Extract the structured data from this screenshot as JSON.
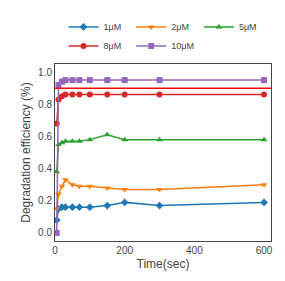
{
  "chart_data": {
    "type": "line",
    "xlabel": "Time(sec)",
    "ylabel": "Degradation efficiency (%)",
    "xlim": [
      0,
      620
    ],
    "ylim": [
      -0.05,
      1.05
    ],
    "xticks": [
      0,
      200,
      400,
      600
    ],
    "yticks": [
      {
        "value": 0,
        "label": "0.0"
      },
      0.2,
      0.4,
      0.6,
      0.8,
      {
        "value": 1,
        "label": "1.0"
      }
    ],
    "grid": false,
    "legend": "top",
    "hlines": [
      {
        "y": 0.9,
        "color": "red"
      }
    ],
    "x": [
      5,
      10,
      20,
      30,
      50,
      70,
      100,
      150,
      200,
      300,
      600
    ],
    "series": [
      {
        "name": "1μM",
        "marker": "diamond",
        "values": [
          0.08,
          0.15,
          0.16,
          0.16,
          0.16,
          0.16,
          0.16,
          0.17,
          0.19,
          0.17,
          0.19
        ]
      },
      {
        "name": "2μM",
        "marker": "triangle-down",
        "values": [
          0.15,
          0.24,
          0.29,
          0.33,
          0.3,
          0.29,
          0.29,
          0.28,
          0.27,
          0.27,
          0.3
        ]
      },
      {
        "name": "5μM",
        "marker": "triangle-up",
        "values": [
          0.38,
          0.55,
          0.56,
          0.57,
          0.57,
          0.57,
          0.58,
          0.61,
          0.58,
          0.58,
          0.58
        ]
      },
      {
        "name": "8μM",
        "marker": "circle",
        "values": [
          0.68,
          0.83,
          0.85,
          0.86,
          0.86,
          0.86,
          0.86,
          0.86,
          0.86,
          0.86,
          0.86
        ]
      },
      {
        "name": "10μM",
        "marker": "square",
        "values": [
          0.0,
          0.92,
          0.94,
          0.95,
          0.95,
          0.95,
          0.95,
          0.95,
          0.95,
          0.95,
          0.95
        ]
      }
    ]
  }
}
